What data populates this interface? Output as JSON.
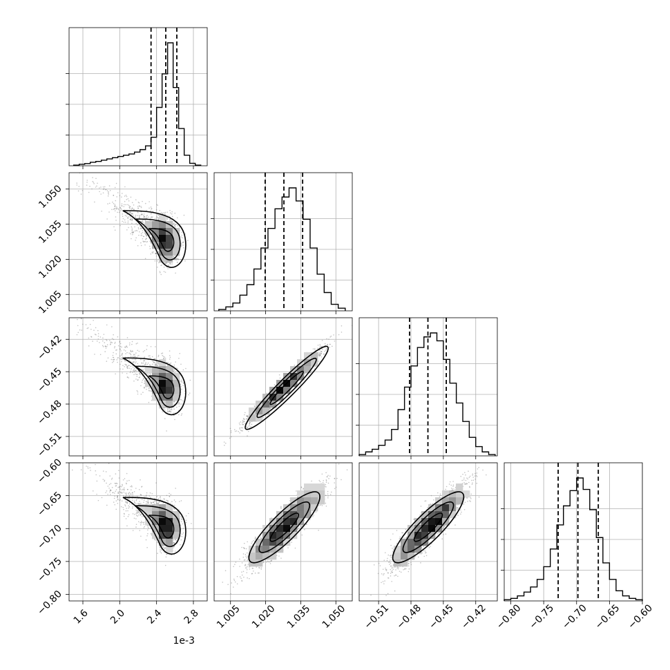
{
  "chart_data": {
    "type": "corner",
    "description_of_panels": "4x4 lower-triangular corner plot; diagonal = 1D marginal histograms with 16/50/84 percentile dashed lines; off-diagonal = 2D density + contours",
    "parameters": [
      {
        "index": 0,
        "range": [
          1.45,
          2.95
        ],
        "ticks": [
          1.6,
          2.0,
          2.4,
          2.8
        ],
        "tick_labels": [
          "1.6",
          "2.0",
          "2.4",
          "2.8"
        ],
        "offset_label": "1e-3",
        "quantiles": [
          2.34,
          2.5,
          2.62
        ],
        "median": 2.5,
        "skew": "left",
        "hist": {
          "bin_edges": [
            1.5,
            1.56,
            1.62,
            1.68,
            1.74,
            1.8,
            1.86,
            1.92,
            1.98,
            2.04,
            2.1,
            2.16,
            2.22,
            2.28,
            2.34,
            2.4,
            2.46,
            2.52,
            2.58,
            2.64,
            2.7,
            2.76,
            2.82,
            2.88
          ],
          "heights": [
            0.005,
            0.012,
            0.018,
            0.028,
            0.035,
            0.045,
            0.055,
            0.065,
            0.075,
            0.085,
            0.095,
            0.11,
            0.13,
            0.16,
            0.23,
            0.47,
            0.74,
            0.99,
            0.63,
            0.3,
            0.085,
            0.02,
            0.005
          ]
        }
      },
      {
        "index": 1,
        "range": [
          0.998,
          1.057
        ],
        "ticks": [
          1.005,
          1.02,
          1.035,
          1.05
        ],
        "tick_labels": [
          "1.005",
          "1.020",
          "1.035",
          "1.050"
        ],
        "quantiles": [
          1.0198,
          1.0278,
          1.0358
        ],
        "median": 1.0278,
        "skew": "none",
        "hist": {
          "bin_edges": [
            1.0,
            1.003,
            1.006,
            1.009,
            1.012,
            1.015,
            1.018,
            1.021,
            1.024,
            1.027,
            1.03,
            1.033,
            1.036,
            1.039,
            1.042,
            1.045,
            1.048,
            1.051,
            1.054
          ],
          "heights": [
            0.01,
            0.03,
            0.06,
            0.12,
            0.2,
            0.32,
            0.48,
            0.63,
            0.78,
            0.87,
            0.94,
            0.84,
            0.7,
            0.48,
            0.28,
            0.14,
            0.05,
            0.02
          ]
        }
      },
      {
        "index": 2,
        "range": [
          -0.528,
          -0.4
        ],
        "ticks": [
          -0.51,
          -0.48,
          -0.45,
          -0.42
        ],
        "tick_labels": [
          "−0.51",
          "−0.48",
          "−0.45",
          "−0.42"
        ],
        "quantiles": [
          -0.4813,
          -0.4643,
          -0.4473
        ],
        "median": -0.4643,
        "skew": "none",
        "hist": {
          "bin_edges": [
            -0.528,
            -0.522,
            -0.516,
            -0.51,
            -0.504,
            -0.498,
            -0.492,
            -0.486,
            -0.48,
            -0.474,
            -0.468,
            -0.462,
            -0.456,
            -0.45,
            -0.444,
            -0.438,
            -0.432,
            -0.426,
            -0.42,
            -0.414,
            -0.408,
            -0.402
          ],
          "heights": [
            0.01,
            0.03,
            0.05,
            0.08,
            0.12,
            0.2,
            0.35,
            0.52,
            0.68,
            0.82,
            0.9,
            0.93,
            0.87,
            0.73,
            0.55,
            0.4,
            0.26,
            0.14,
            0.07,
            0.03,
            0.01
          ]
        }
      },
      {
        "index": 3,
        "range": [
          -0.81,
          -0.6
        ],
        "ticks": [
          -0.8,
          -0.75,
          -0.7,
          -0.65,
          -0.6
        ],
        "tick_labels": [
          "−0.80",
          "−0.75",
          "−0.70",
          "−0.65",
          "−0.60"
        ],
        "quantiles": [
          -0.728,
          -0.698,
          -0.667
        ],
        "median": -0.698,
        "skew": "none",
        "hist": {
          "bin_edges": [
            -0.81,
            -0.8,
            -0.79,
            -0.78,
            -0.77,
            -0.76,
            -0.75,
            -0.74,
            -0.73,
            -0.72,
            -0.71,
            -0.7,
            -0.69,
            -0.68,
            -0.67,
            -0.66,
            -0.65,
            -0.64,
            -0.63,
            -0.62,
            -0.61,
            -0.6
          ],
          "heights": [
            0.01,
            0.02,
            0.04,
            0.07,
            0.11,
            0.17,
            0.27,
            0.41,
            0.6,
            0.75,
            0.87,
            0.97,
            0.88,
            0.72,
            0.5,
            0.3,
            0.17,
            0.08,
            0.04,
            0.02,
            0.01
          ]
        }
      }
    ],
    "correlations": [
      {
        "pair": [
          0,
          1
        ],
        "shape": "banana",
        "trend": "negative",
        "mode": [
          2.5,
          1.028
        ]
      },
      {
        "pair": [
          0,
          2
        ],
        "shape": "banana",
        "trend": "negative",
        "mode": [
          2.5,
          -0.465
        ]
      },
      {
        "pair": [
          0,
          3
        ],
        "shape": "banana",
        "trend": "negative",
        "mode": [
          2.5,
          -0.698
        ]
      },
      {
        "pair": [
          1,
          2
        ],
        "shape": "ellipse",
        "rho": 0.97,
        "mode": [
          1.029,
          -0.465
        ]
      },
      {
        "pair": [
          1,
          3
        ],
        "shape": "ellipse",
        "rho": 0.9,
        "mode": [
          1.028,
          -0.698
        ]
      },
      {
        "pair": [
          2,
          3
        ],
        "shape": "ellipse",
        "rho": 0.9,
        "mode": [
          -0.464,
          -0.698
        ]
      }
    ]
  }
}
